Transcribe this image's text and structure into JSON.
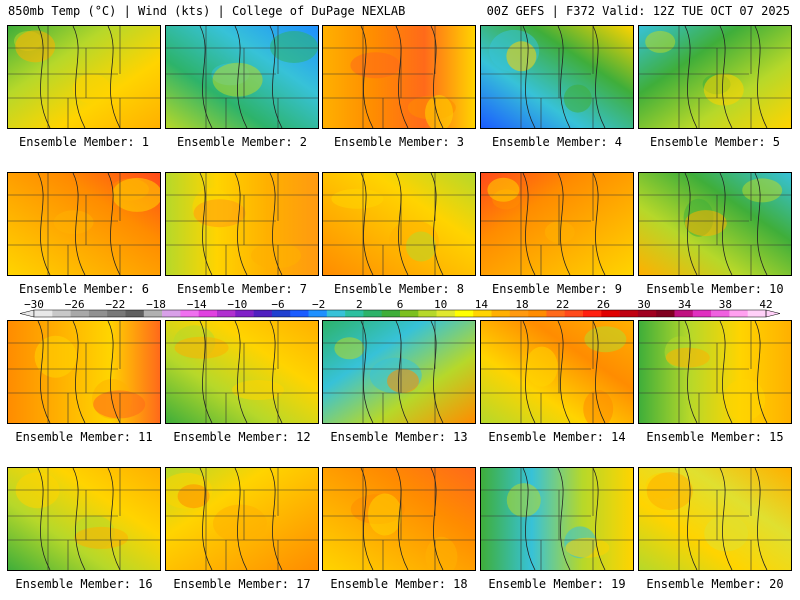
{
  "header": {
    "left": "850mb Temp (°C) | Wind (kts) | College of DuPage NEXLAB",
    "right": "00Z GEFS | F372 Valid: 12Z TUE OCT 07 2025"
  },
  "label_prefix": "Ensemble Member: ",
  "members": [
    {
      "n": "1",
      "scheme": [
        "#3fae3a",
        "#b6d82a",
        "#ffd400",
        "#ffb000"
      ]
    },
    {
      "n": "2",
      "scheme": [
        "#1e90ff",
        "#37c2d8",
        "#2db36a",
        "#b6d82a"
      ]
    },
    {
      "n": "3",
      "scheme": [
        "#ffb000",
        "#ff8c00",
        "#ff6a1a",
        "#ffd400"
      ]
    },
    {
      "n": "4",
      "scheme": [
        "#1a5cff",
        "#37c2d8",
        "#3fae3a",
        "#ffd400"
      ]
    },
    {
      "n": "5",
      "scheme": [
        "#37c2d8",
        "#3fae3a",
        "#b6d82a",
        "#ffd400"
      ]
    },
    {
      "n": "6",
      "scheme": [
        "#ff4a1a",
        "#ff8c00",
        "#ffb000",
        "#ffd400"
      ]
    },
    {
      "n": "7",
      "scheme": [
        "#b6d82a",
        "#ffd400",
        "#ffb000",
        "#ff9a10"
      ]
    },
    {
      "n": "8",
      "scheme": [
        "#ff8c00",
        "#ffb000",
        "#ffd400",
        "#b6d82a"
      ]
    },
    {
      "n": "9",
      "scheme": [
        "#ff4a1a",
        "#ff8c00",
        "#ffb000",
        "#ffd400"
      ]
    },
    {
      "n": "10",
      "scheme": [
        "#37c2d8",
        "#3fae3a",
        "#b6d82a",
        "#ffb000"
      ]
    },
    {
      "n": "11",
      "scheme": [
        "#ff8c00",
        "#ffb000",
        "#ffd400",
        "#ff6a1a"
      ]
    },
    {
      "n": "12",
      "scheme": [
        "#3fae3a",
        "#b6d82a",
        "#ffd400",
        "#ffb000"
      ]
    },
    {
      "n": "13",
      "scheme": [
        "#2db36a",
        "#37c2d8",
        "#b6d82a",
        "#ff8c00"
      ]
    },
    {
      "n": "14",
      "scheme": [
        "#ffb000",
        "#ff8c00",
        "#ffd400",
        "#b6d82a"
      ]
    },
    {
      "n": "15",
      "scheme": [
        "#3fae3a",
        "#b6d82a",
        "#ffd400",
        "#ffb000"
      ]
    },
    {
      "n": "16",
      "scheme": [
        "#3fae3a",
        "#b6d82a",
        "#ffd400",
        "#ffb000"
      ]
    },
    {
      "n": "17",
      "scheme": [
        "#b6d82a",
        "#ffd400",
        "#ffb000",
        "#ff8c00"
      ]
    },
    {
      "n": "18",
      "scheme": [
        "#ff6a1a",
        "#ff8c00",
        "#ffb000",
        "#ffd400"
      ]
    },
    {
      "n": "19",
      "scheme": [
        "#3fae3a",
        "#37c2d8",
        "#b6d82a",
        "#ffd400"
      ]
    },
    {
      "n": "20",
      "scheme": [
        "#b6d82a",
        "#ffd400",
        "#e0e030",
        "#ffb000"
      ]
    }
  ],
  "colorbar": {
    "ticks": [
      "-30",
      "-26",
      "-22",
      "-18",
      "-14",
      "-10",
      "-6",
      "-2",
      "2",
      "6",
      "10",
      "14",
      "18",
      "22",
      "26",
      "30",
      "34",
      "38",
      "42"
    ],
    "colors": [
      "#e8e8e8",
      "#c8c8c8",
      "#a8a8a8",
      "#909090",
      "#787878",
      "#606060",
      "#b0b0b0",
      "#d8a0e8",
      "#f070f0",
      "#e040e0",
      "#b030d0",
      "#8020c8",
      "#5020c0",
      "#2040d0",
      "#1a5cff",
      "#1e90ff",
      "#37c2d8",
      "#2dc0a0",
      "#2db36a",
      "#3fae3a",
      "#7cc020",
      "#b6d82a",
      "#e0e830",
      "#ffff00",
      "#ffd400",
      "#ffb000",
      "#ff9a10",
      "#ff8c00",
      "#ff6a1a",
      "#ff4a1a",
      "#ff2010",
      "#e00000",
      "#c00010",
      "#a00020",
      "#800020",
      "#c01080",
      "#e030c0",
      "#f060e0",
      "#ffa0f0",
      "#ffd0f8"
    ]
  }
}
